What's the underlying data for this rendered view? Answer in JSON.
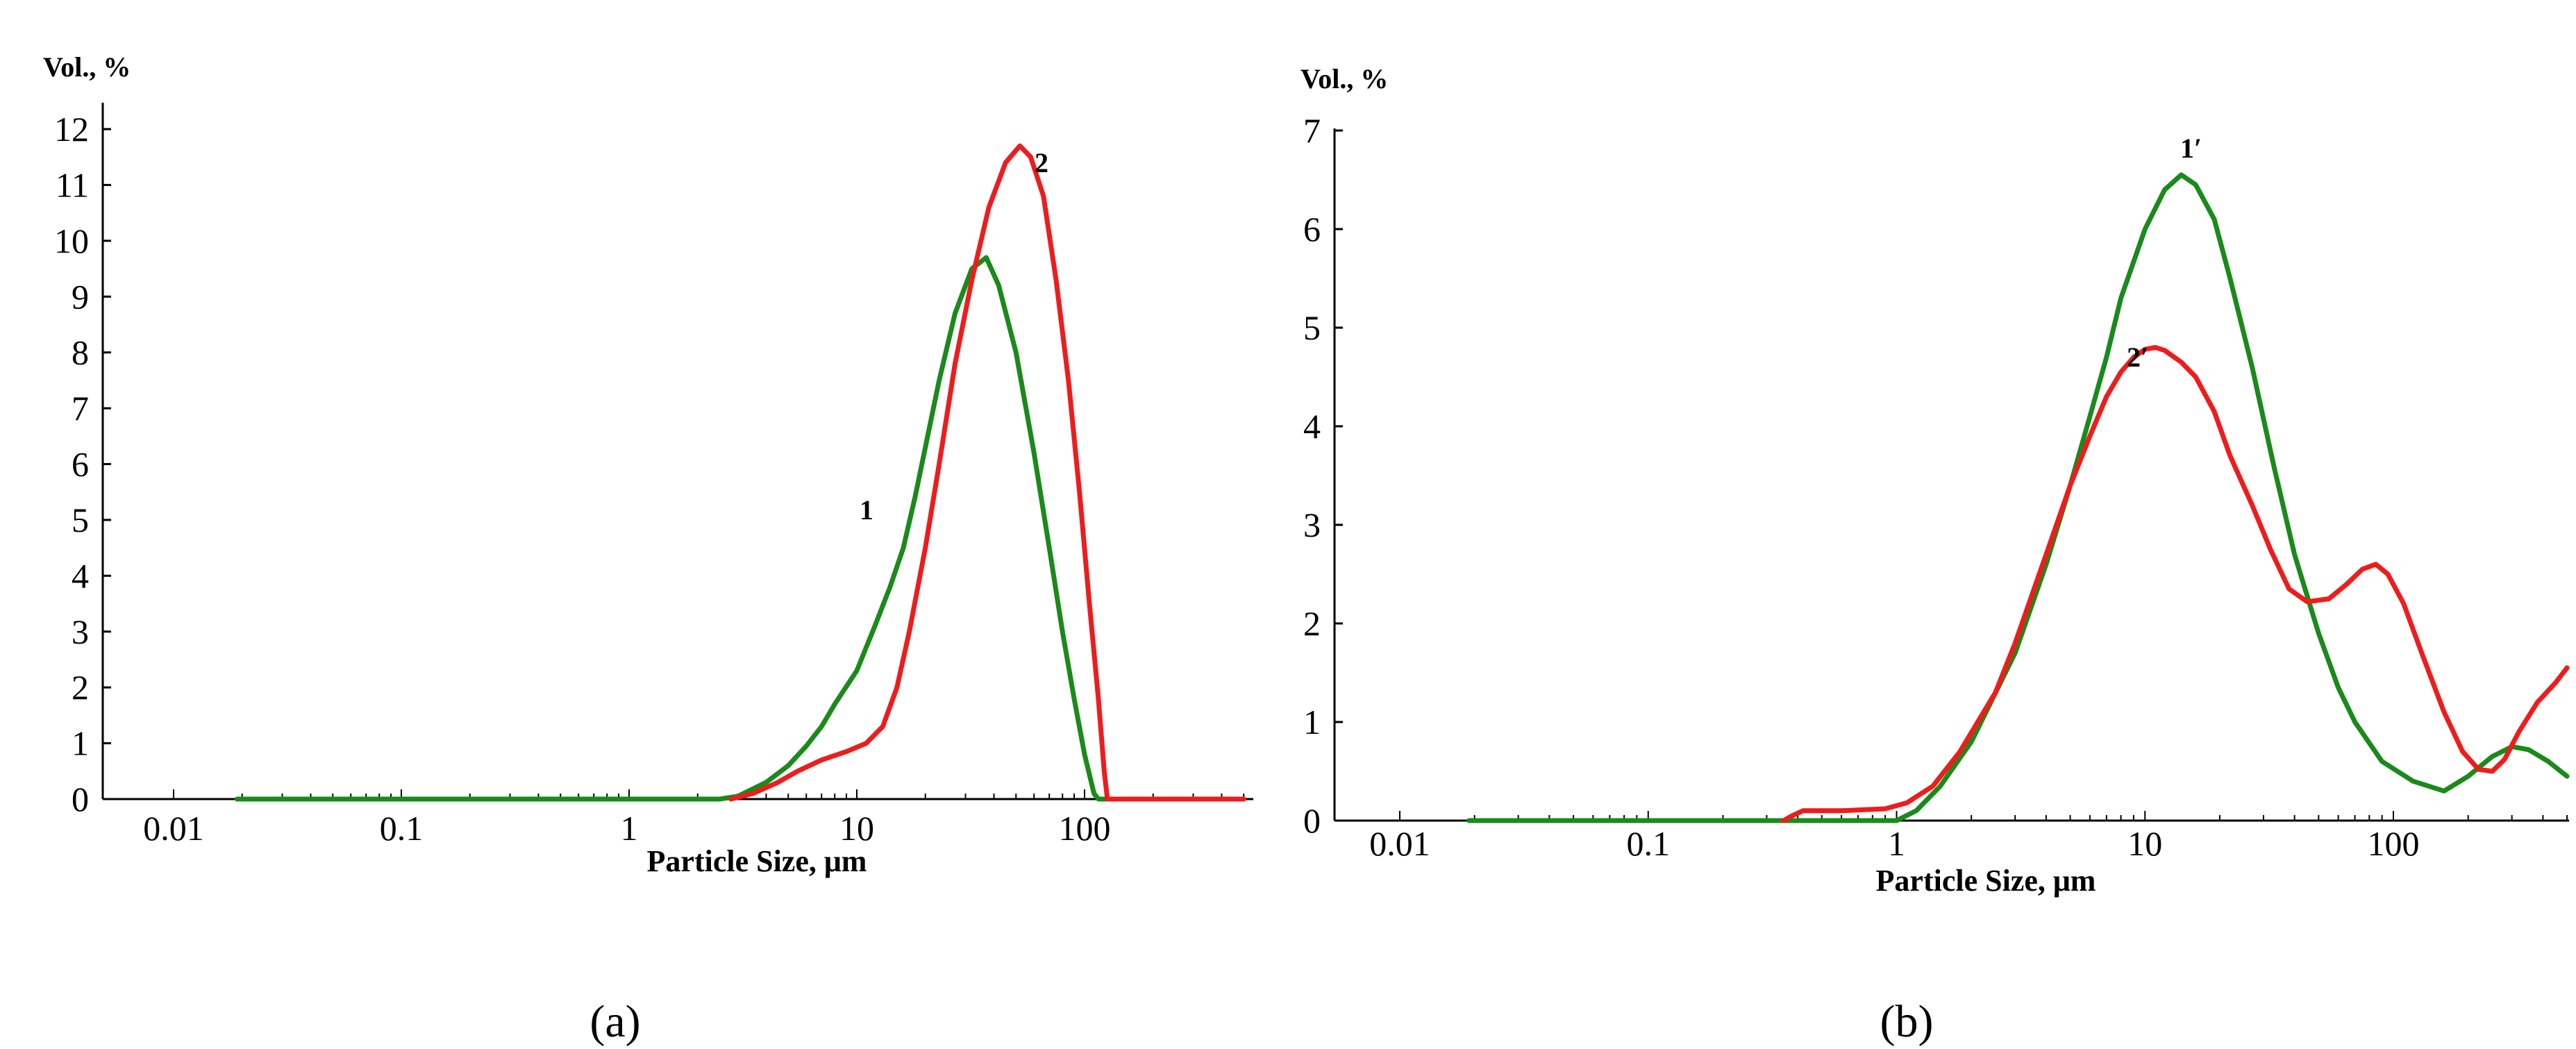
{
  "chart_data": [
    {
      "type": "line",
      "panel_label": "(a)",
      "ylabel": "Vol., %",
      "xlabel": "Particle Size, μm",
      "x_scale": "log",
      "xlim": [
        0.01,
        500
      ],
      "ylim": [
        0,
        12
      ],
      "x_ticks": [
        0.01,
        0.1,
        1,
        10,
        100
      ],
      "x_tick_labels": [
        "0.01",
        "0.1",
        "1",
        "10",
        "100"
      ],
      "y_ticks": [
        0,
        1,
        2,
        3,
        4,
        5,
        6,
        7,
        8,
        9,
        10,
        11,
        12
      ],
      "y_tick_labels": [
        "0",
        "1",
        "2",
        "3",
        "4",
        "5",
        "6",
        "7",
        "8",
        "9",
        "10",
        "11",
        "12"
      ],
      "grid": false,
      "series": [
        {
          "name": "1",
          "color": "#1a8a1a",
          "points": [
            [
              0.019,
              0
            ],
            [
              2.5,
              0
            ],
            [
              3,
              0.05
            ],
            [
              4,
              0.3
            ],
            [
              5,
              0.6
            ],
            [
              6,
              0.95
            ],
            [
              7,
              1.3
            ],
            [
              8,
              1.7
            ],
            [
              10,
              2.3
            ],
            [
              12,
              3.1
            ],
            [
              14,
              3.8
            ],
            [
              16,
              4.5
            ],
            [
              18,
              5.4
            ],
            [
              20,
              6.3
            ],
            [
              23,
              7.5
            ],
            [
              27,
              8.7
            ],
            [
              32,
              9.5
            ],
            [
              37,
              9.7
            ],
            [
              42,
              9.2
            ],
            [
              50,
              8.0
            ],
            [
              60,
              6.2
            ],
            [
              70,
              4.5
            ],
            [
              80,
              3.0
            ],
            [
              90,
              1.8
            ],
            [
              100,
              0.8
            ],
            [
              110,
              0.1
            ],
            [
              115,
              0
            ],
            [
              500,
              0
            ]
          ]
        },
        {
          "name": "2",
          "color": "#ee1c1c",
          "points": [
            [
              2.8,
              0
            ],
            [
              3.5,
              0.1
            ],
            [
              4.5,
              0.3
            ],
            [
              5.5,
              0.5
            ],
            [
              7,
              0.7
            ],
            [
              9,
              0.85
            ],
            [
              11,
              1.0
            ],
            [
              13,
              1.3
            ],
            [
              15,
              2.0
            ],
            [
              17,
              3.0
            ],
            [
              20,
              4.5
            ],
            [
              23,
              6.0
            ],
            [
              27,
              7.8
            ],
            [
              32,
              9.3
            ],
            [
              38,
              10.6
            ],
            [
              45,
              11.4
            ],
            [
              52,
              11.7
            ],
            [
              58,
              11.5
            ],
            [
              66,
              10.8
            ],
            [
              75,
              9.3
            ],
            [
              85,
              7.5
            ],
            [
              95,
              5.5
            ],
            [
              105,
              3.5
            ],
            [
              115,
              1.8
            ],
            [
              122,
              0.5
            ],
            [
              126,
              0
            ],
            [
              500,
              0
            ]
          ]
        }
      ],
      "annotations": [
        "1",
        "2"
      ]
    },
    {
      "type": "line",
      "panel_label": "(b)",
      "ylabel": "Vol., %",
      "xlabel": "Particle Size, μm",
      "x_scale": "log",
      "xlim": [
        0.01,
        500
      ],
      "ylim": [
        0,
        7
      ],
      "x_ticks": [
        0.01,
        0.1,
        1,
        10,
        100
      ],
      "x_tick_labels": [
        "0.01",
        "0.1",
        "1",
        "10",
        "100"
      ],
      "y_ticks": [
        0,
        1,
        2,
        3,
        4,
        5,
        6,
        7
      ],
      "y_tick_labels": [
        "0",
        "1",
        "2",
        "3",
        "4",
        "5",
        "6",
        "7"
      ],
      "grid": false,
      "series": [
        {
          "name": "1′",
          "color": "#1a8a1a",
          "points": [
            [
              0.019,
              0
            ],
            [
              1.0,
              0
            ],
            [
              1.2,
              0.1
            ],
            [
              1.5,
              0.35
            ],
            [
              2,
              0.8
            ],
            [
              3,
              1.7
            ],
            [
              4,
              2.6
            ],
            [
              5,
              3.4
            ],
            [
              6,
              4.1
            ],
            [
              7,
              4.7
            ],
            [
              8,
              5.3
            ],
            [
              10,
              6.0
            ],
            [
              12,
              6.4
            ],
            [
              14,
              6.55
            ],
            [
              16,
              6.45
            ],
            [
              19,
              6.1
            ],
            [
              22,
              5.5
            ],
            [
              27,
              4.6
            ],
            [
              33,
              3.6
            ],
            [
              40,
              2.7
            ],
            [
              50,
              1.9
            ],
            [
              60,
              1.35
            ],
            [
              70,
              1.0
            ],
            [
              90,
              0.6
            ],
            [
              120,
              0.4
            ],
            [
              160,
              0.3
            ],
            [
              200,
              0.45
            ],
            [
              250,
              0.65
            ],
            [
              300,
              0.75
            ],
            [
              350,
              0.72
            ],
            [
              420,
              0.6
            ],
            [
              500,
              0.45
            ]
          ]
        },
        {
          "name": "2′",
          "color": "#ee1c1c",
          "points": [
            [
              0.35,
              0
            ],
            [
              0.38,
              0.05
            ],
            [
              0.42,
              0.1
            ],
            [
              0.6,
              0.1
            ],
            [
              0.9,
              0.12
            ],
            [
              1.1,
              0.18
            ],
            [
              1.4,
              0.35
            ],
            [
              1.8,
              0.7
            ],
            [
              2.5,
              1.3
            ],
            [
              3,
              1.8
            ],
            [
              4,
              2.7
            ],
            [
              5,
              3.4
            ],
            [
              6,
              3.9
            ],
            [
              7,
              4.3
            ],
            [
              8,
              4.55
            ],
            [
              9,
              4.7
            ],
            [
              10,
              4.78
            ],
            [
              11,
              4.8
            ],
            [
              12,
              4.77
            ],
            [
              14,
              4.65
            ],
            [
              16,
              4.5
            ],
            [
              19,
              4.15
            ],
            [
              22,
              3.7
            ],
            [
              27,
              3.2
            ],
            [
              32,
              2.75
            ],
            [
              38,
              2.35
            ],
            [
              45,
              2.22
            ],
            [
              55,
              2.25
            ],
            [
              65,
              2.4
            ],
            [
              75,
              2.55
            ],
            [
              85,
              2.6
            ],
            [
              95,
              2.5
            ],
            [
              110,
              2.2
            ],
            [
              130,
              1.7
            ],
            [
              160,
              1.1
            ],
            [
              190,
              0.7
            ],
            [
              220,
              0.52
            ],
            [
              250,
              0.5
            ],
            [
              280,
              0.62
            ],
            [
              320,
              0.9
            ],
            [
              380,
              1.2
            ],
            [
              450,
              1.4
            ],
            [
              500,
              1.55
            ]
          ]
        }
      ],
      "annotations": [
        "1′",
        "2′"
      ]
    }
  ]
}
